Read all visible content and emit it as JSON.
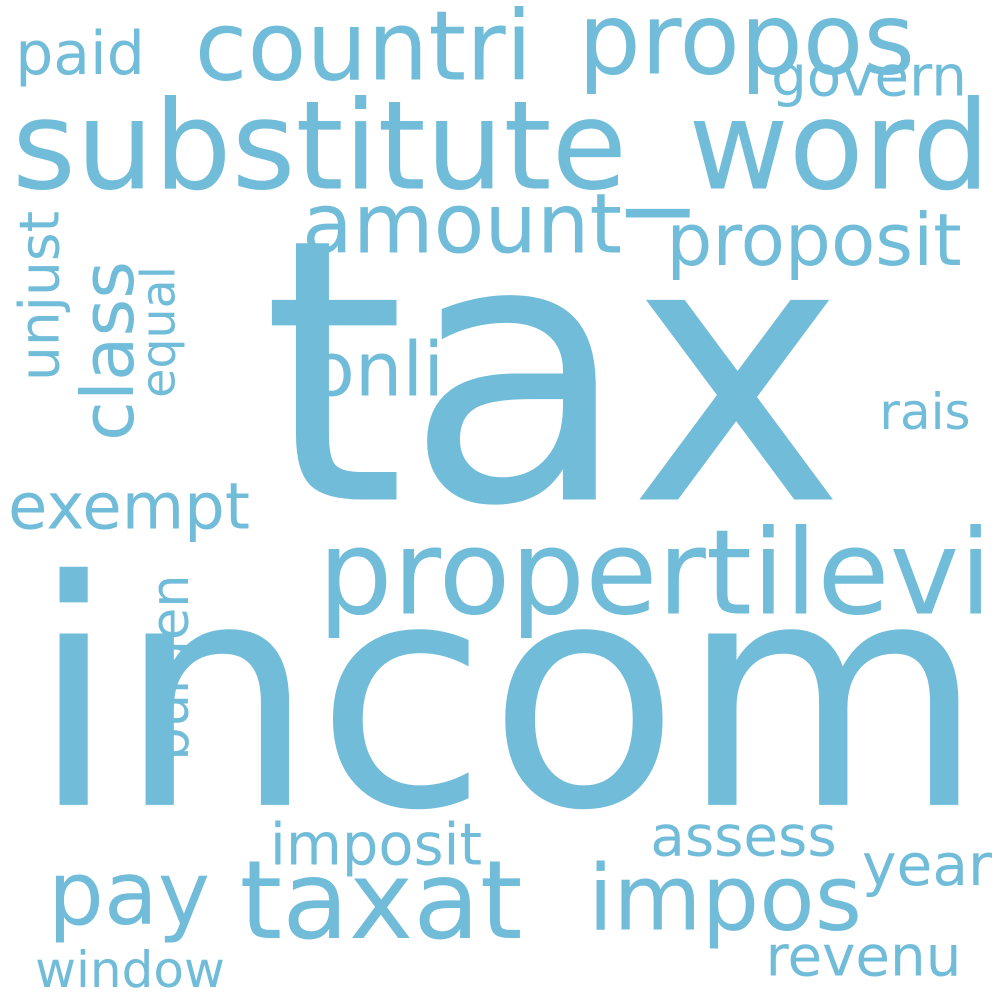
{
  "word_color": "#71bcd9",
  "background": "#ffffff",
  "words": [
    {
      "id": "tax",
      "text": "tax"
    },
    {
      "id": "incom",
      "text": "incom"
    },
    {
      "id": "substitute_word",
      "text": "substitute_word"
    },
    {
      "id": "countri",
      "text": "countri"
    },
    {
      "id": "propos",
      "text": "propos"
    },
    {
      "id": "paid",
      "text": "paid"
    },
    {
      "id": "govern",
      "text": "govern"
    },
    {
      "id": "amount",
      "text": "amount"
    },
    {
      "id": "proposit",
      "text": "proposit"
    },
    {
      "id": "class",
      "text": "class"
    },
    {
      "id": "unjust",
      "text": "unjust"
    },
    {
      "id": "equal",
      "text": "equal"
    },
    {
      "id": "onli",
      "text": "onli"
    },
    {
      "id": "rais",
      "text": "rais"
    },
    {
      "id": "exempt",
      "text": "exempt"
    },
    {
      "id": "propertilevi",
      "text": "propertilevi"
    },
    {
      "id": "burden",
      "text": "burden"
    },
    {
      "id": "imposit",
      "text": "imposit"
    },
    {
      "id": "assess",
      "text": "assess"
    },
    {
      "id": "year",
      "text": "year"
    },
    {
      "id": "pay",
      "text": "pay"
    },
    {
      "id": "taxat",
      "text": "taxat"
    },
    {
      "id": "impos",
      "text": "impos"
    },
    {
      "id": "window",
      "text": "window"
    },
    {
      "id": "revenu",
      "text": "revenu"
    }
  ]
}
